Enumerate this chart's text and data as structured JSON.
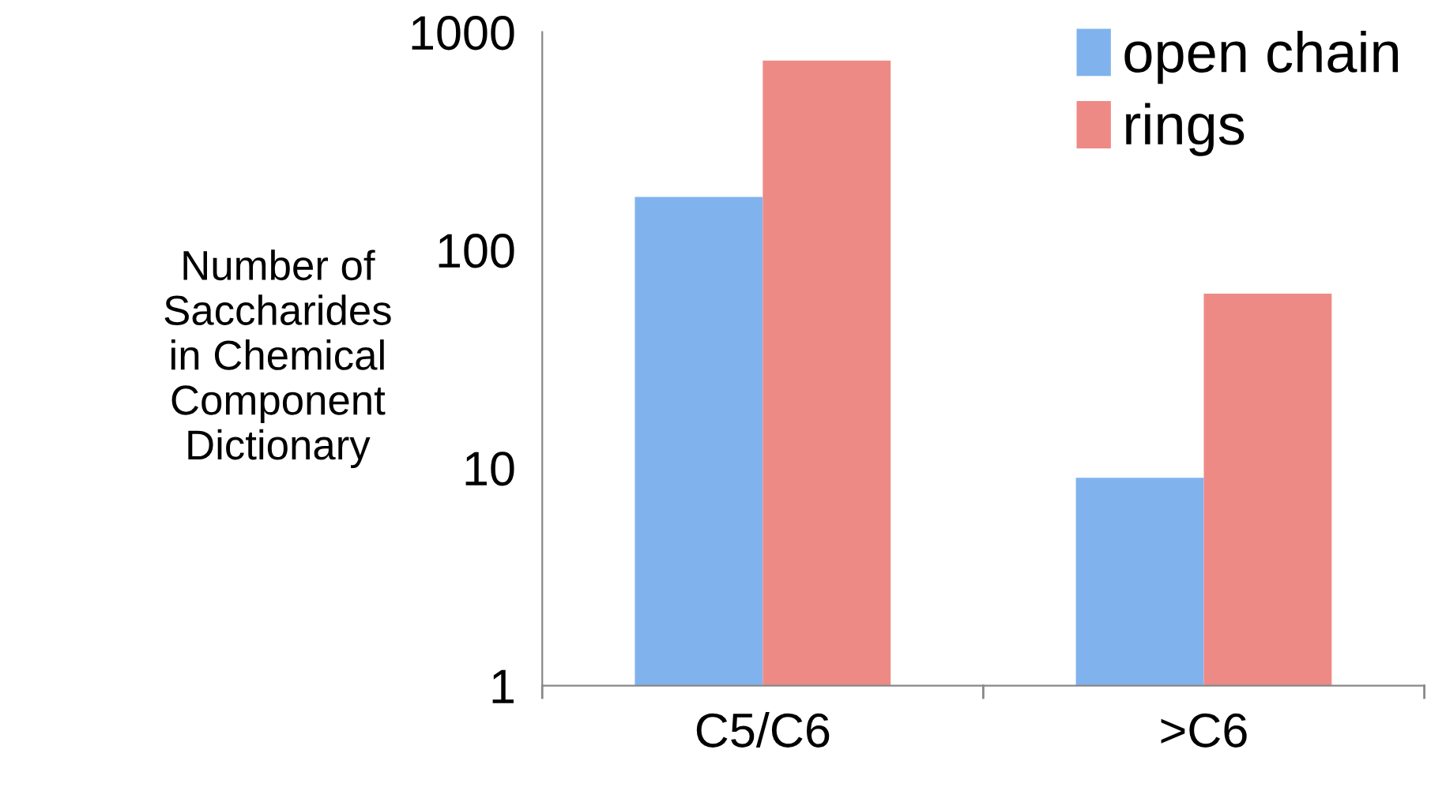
{
  "chart_data": {
    "type": "bar",
    "ylabel": "Number of\nSaccharides\nin Chemical\nComponent\nDictionary",
    "categories": [
      "C5/C6",
      ">C6"
    ],
    "series": [
      {
        "name": "open chain",
        "color": "#80b3ee",
        "values": [
          175,
          9
        ]
      },
      {
        "name": "rings",
        "color": "#ee8a86",
        "values": [
          740,
          63
        ]
      }
    ],
    "log": "y",
    "ylim": [
      1,
      1000
    ],
    "yticks": [
      1,
      10,
      100,
      1000
    ],
    "grid": false,
    "legend": "top right"
  }
}
